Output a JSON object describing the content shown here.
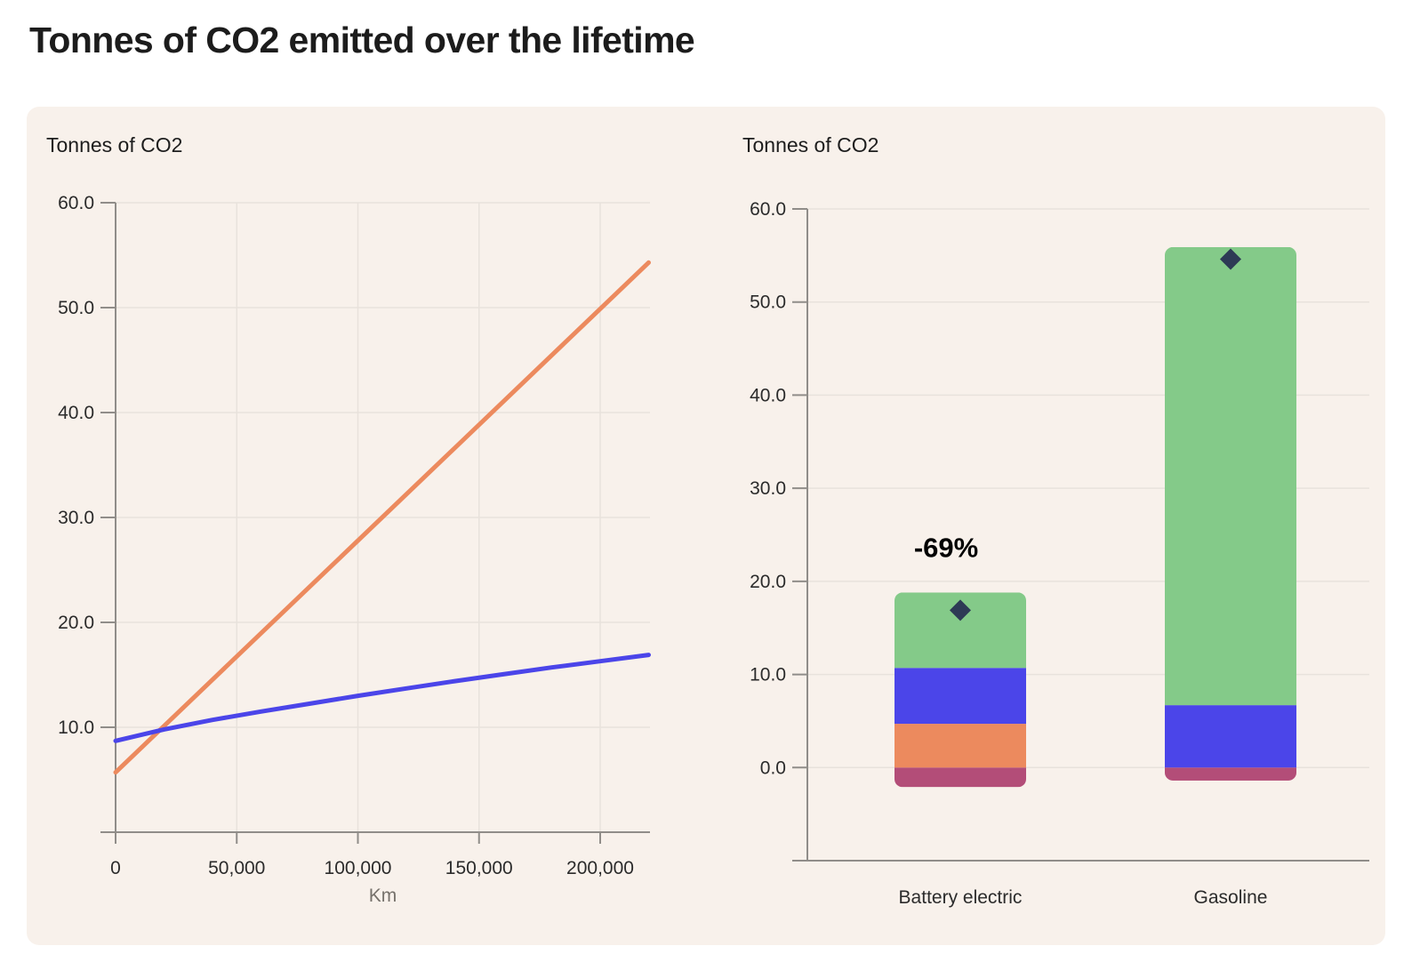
{
  "page": {
    "title": "Tonnes of CO2 emitted over the lifetime"
  },
  "palette": {
    "green": "#84ca89",
    "blue": "#4b45e9",
    "orange": "#ec8a5e",
    "pink": "#b34d78",
    "navy": "#2d3a55",
    "axis": "#908d89",
    "grid": "#e8e2dc",
    "text": "#2b2b2b",
    "muted": "#76716b",
    "card_bg": "#f8f1eb"
  },
  "chart_data": [
    {
      "type": "line",
      "title": "Tonnes of CO2",
      "xlabel": "Km",
      "ylabel": "Tonnes of CO2",
      "xlim": [
        0,
        221000
      ],
      "ylim": [
        0,
        60
      ],
      "grid": true,
      "x_ticks": [
        {
          "value": 0,
          "label": "0"
        },
        {
          "value": 50000,
          "label": "50,000"
        },
        {
          "value": 100000,
          "label": "100,000"
        },
        {
          "value": 150000,
          "label": "150,000"
        },
        {
          "value": 200000,
          "label": "200,000"
        }
      ],
      "y_ticks": [
        {
          "value": 60,
          "label": "60.0"
        },
        {
          "value": 50,
          "label": "50.0"
        },
        {
          "value": 40,
          "label": "40.0"
        },
        {
          "value": 30,
          "label": "30.0"
        },
        {
          "value": 20,
          "label": "20.0"
        },
        {
          "value": 10,
          "label": "10.0"
        }
      ],
      "series": [
        {
          "color": "orange",
          "x": [
            0,
            220000
          ],
          "y": [
            5.7,
            54.3
          ]
        },
        {
          "color": "blue",
          "x": [
            0,
            20000,
            40000,
            60000,
            80000,
            100000,
            120000,
            140000,
            160000,
            180000,
            200000,
            220000
          ],
          "y": [
            8.7,
            9.8,
            10.7,
            11.5,
            12.25,
            13.0,
            13.7,
            14.4,
            15.05,
            15.7,
            16.3,
            16.9
          ]
        }
      ]
    },
    {
      "type": "stacked-bar",
      "title": "Tonnes of CO2",
      "ylim": [
        -10,
        60
      ],
      "grid": true,
      "y_ticks": [
        {
          "value": 60,
          "label": "60.0"
        },
        {
          "value": 50,
          "label": "50.0"
        },
        {
          "value": 40,
          "label": "40.0"
        },
        {
          "value": 30,
          "label": "30.0"
        },
        {
          "value": 20,
          "label": "20.0"
        },
        {
          "value": 10,
          "label": "10.0"
        },
        {
          "value": 0,
          "label": "0.0"
        }
      ],
      "categories": [
        "Battery electric",
        "Gasoline"
      ],
      "series": [
        {
          "color": "pink",
          "values": [
            -2.1,
            -1.4
          ]
        },
        {
          "color": "orange",
          "values": [
            4.7,
            0
          ]
        },
        {
          "color": "blue",
          "values": [
            6.0,
            6.7
          ]
        },
        {
          "color": "green",
          "values": [
            8.1,
            49.2
          ]
        }
      ],
      "net_markers": {
        "color": "navy",
        "values": [
          16.9,
          54.6
        ]
      },
      "annotation": {
        "text": "-69%",
        "category_index": 0
      }
    }
  ]
}
